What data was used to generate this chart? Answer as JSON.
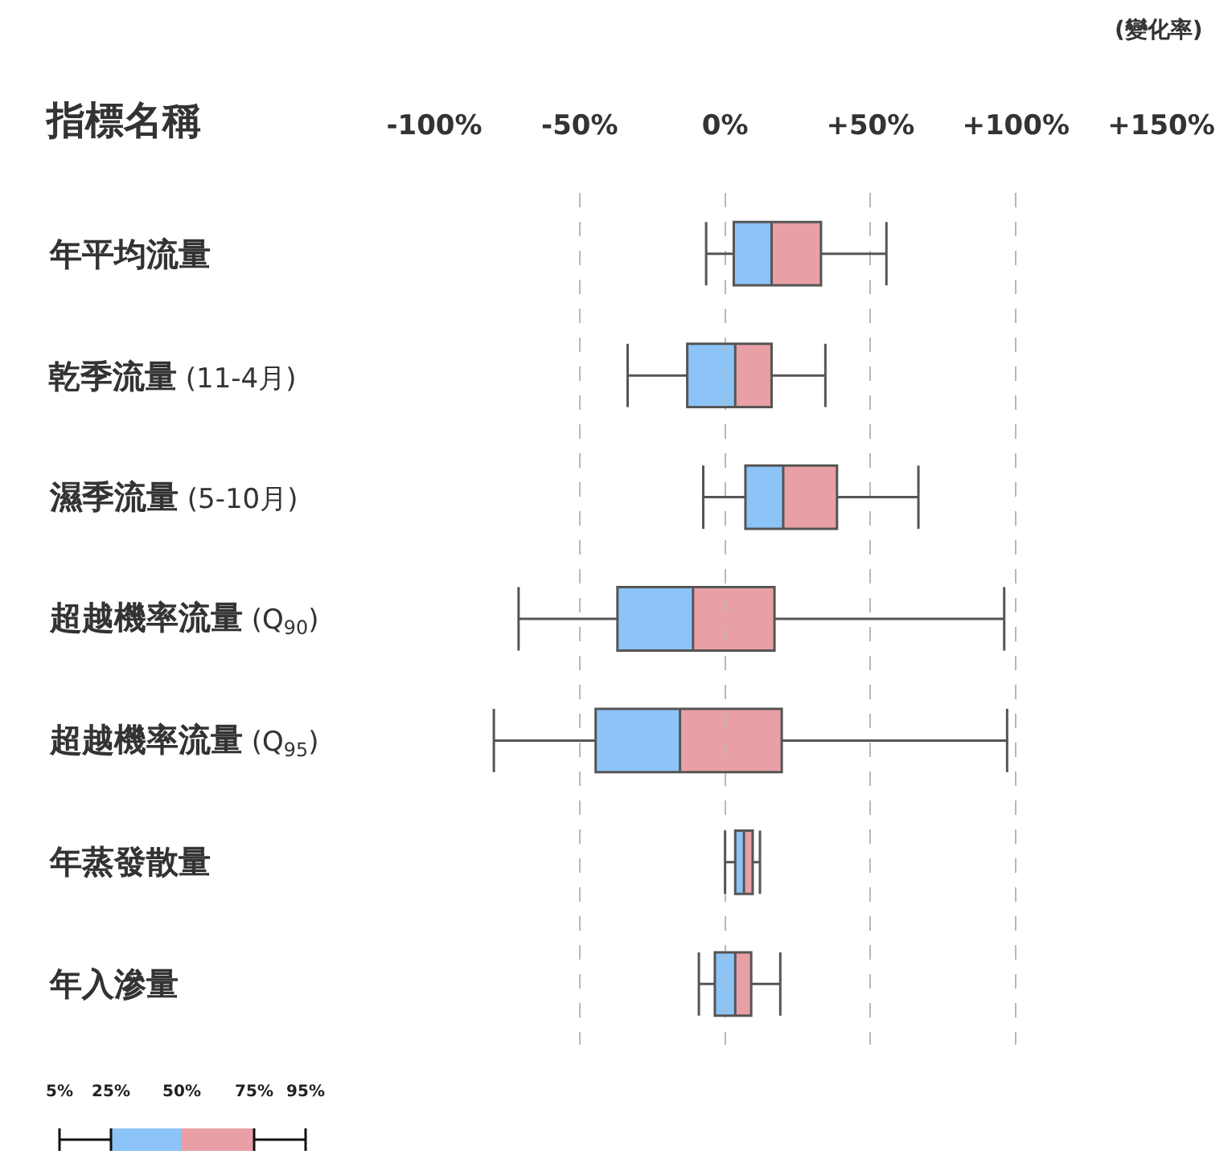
{
  "chart_data": {
    "type": "box",
    "orientation": "horizontal",
    "xlabel": "(變化率)",
    "ylabel": "指標名稱",
    "categories": [
      "年平均流量",
      "乾季流量 (11-4月)",
      "濕季流量 (5-10月)",
      "超越機率流量 (Q$_{90}$)",
      "超越機率流量 (Q$_{95}$)",
      "年蒸發散量",
      "年入滲量"
    ],
    "colors": [
      [
        "#8cc4f8",
        "#e8a0a6"
      ],
      [
        "#8cc4f8",
        "#e8a0a6"
      ],
      [
        "#8cc4f8",
        "#e8a0a6"
      ],
      [
        "#8cc4f8",
        "#e8a0a6"
      ],
      [
        "#8cc4f8",
        "#e8a0a6"
      ],
      [
        "#8cc4f8",
        "#e8a0a6"
      ],
      [
        "#8cc4f8",
        "#e8a0a6"
      ]
    ],
    "boxes": [
      {
        "low": -6.5,
        "q1": 3,
        "median": 16,
        "q3": 33,
        "high": 55.5
      },
      {
        "low": -33.5,
        "q1": -13,
        "median": 3.5,
        "q3": 16,
        "high": 34.5
      },
      {
        "low": -7.5,
        "q1": 7,
        "median": 20,
        "q3": 38.5,
        "high": 66.5
      },
      {
        "low": -71,
        "q1": -37,
        "median": -11,
        "q3": 17,
        "high": 96
      },
      {
        "low": -79.5,
        "q1": -44.5,
        "median": -15.5,
        "q3": 19.5,
        "high": 97
      },
      {
        "low": 0,
        "q1": 3.5,
        "median": 6.5,
        "q3": 9.5,
        "high": 12
      },
      {
        "low": -9,
        "q1": -3.5,
        "median": 3.5,
        "q3": 9,
        "high": 19
      }
    ],
    "xlim": [
      -100,
      150
    ],
    "xticks": [
      {
        "value": -100,
        "label": "-100%"
      },
      {
        "value": -50,
        "label": "-50%"
      },
      {
        "value": 0,
        "label": "0%"
      },
      {
        "value": 50,
        "label": "+50%"
      },
      {
        "value": 100,
        "label": "+100%"
      },
      {
        "value": 150,
        "label": "+150%"
      }
    ],
    "grid": "x",
    "annotations": [
      "5%",
      "25%",
      "50%",
      "75%",
      "95%"
    ]
  }
}
